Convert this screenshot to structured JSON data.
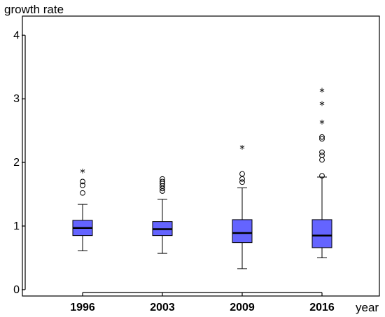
{
  "chart_data": {
    "type": "boxplot",
    "ylabel": "growth rate",
    "xlabel": "year",
    "ylim": [
      -0.1,
      4.3
    ],
    "yticks": [
      "0",
      "1",
      "2",
      "3",
      "4"
    ],
    "grid": false,
    "colors": {
      "box_fill": "#6464ff",
      "line": "#000000"
    },
    "categories": [
      "1996",
      "2003",
      "2009",
      "2016"
    ],
    "boxes": [
      {
        "category": "1996",
        "whisker_low": 0.61,
        "q1": 0.85,
        "median": 0.97,
        "q3": 1.09,
        "whisker_high": 1.34,
        "outliers": [
          1.52,
          1.64,
          1.7
        ],
        "extremes": [
          1.86
        ]
      },
      {
        "category": "2003",
        "whisker_low": 0.57,
        "q1": 0.85,
        "median": 0.95,
        "q3": 1.07,
        "whisker_high": 1.42,
        "outliers": [
          1.55,
          1.59,
          1.63,
          1.67,
          1.7,
          1.74
        ],
        "extremes": []
      },
      {
        "category": "2009",
        "whisker_low": 0.33,
        "q1": 0.74,
        "median": 0.89,
        "q3": 1.1,
        "whisker_high": 1.6,
        "outliers": [
          1.69,
          1.74,
          1.82
        ],
        "extremes": [
          2.23
        ]
      },
      {
        "category": "2016",
        "whisker_low": 0.5,
        "q1": 0.66,
        "median": 0.85,
        "q3": 1.1,
        "whisker_high": 1.77,
        "outliers": [
          1.79,
          2.04,
          2.11,
          2.16,
          2.37,
          2.4
        ],
        "extremes": [
          2.63,
          2.92,
          3.13
        ]
      }
    ]
  }
}
